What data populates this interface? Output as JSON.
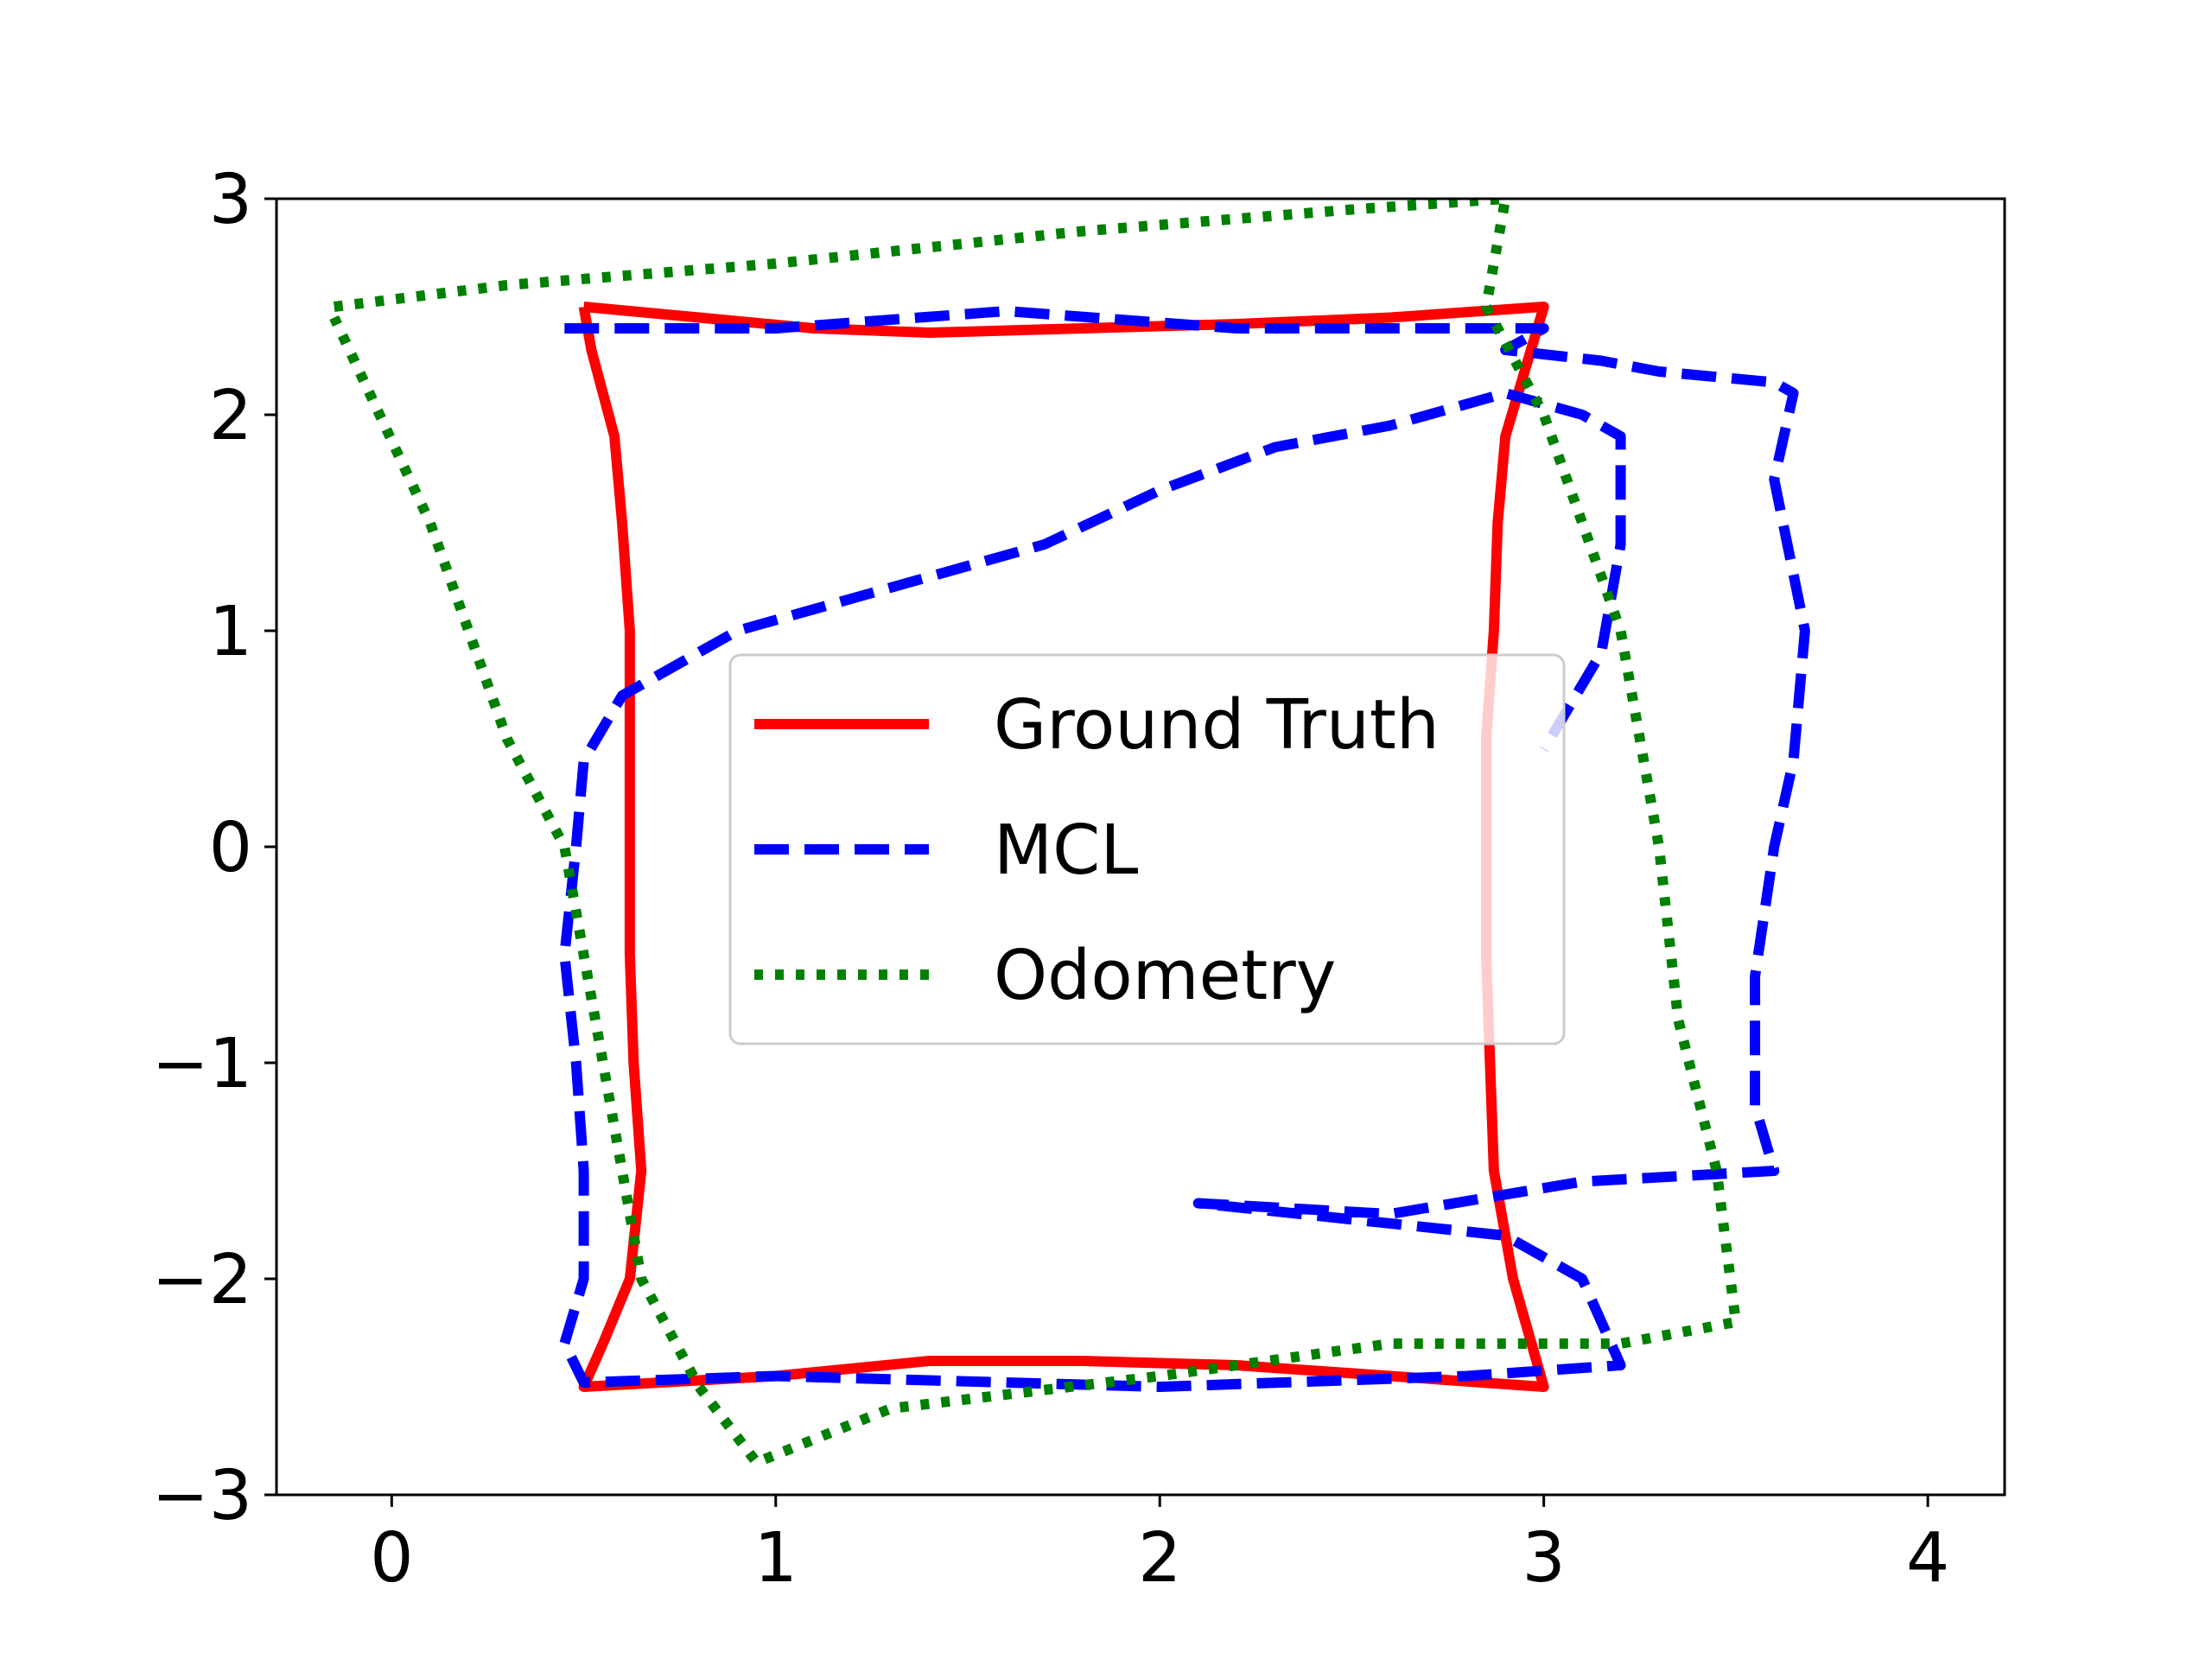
{
  "chart_data": {
    "type": "line",
    "title": "",
    "xlabel": "",
    "ylabel": "",
    "xlim": [
      -0.3,
      4.2
    ],
    "ylim": [
      -3,
      3
    ],
    "xticks": [
      0,
      1,
      2,
      3,
      4
    ],
    "xtick_labels": [
      "0",
      "1",
      "2",
      "3",
      "4"
    ],
    "yticks": [
      -3,
      -2,
      -1,
      0,
      1,
      2,
      3
    ],
    "ytick_labels": [
      "−3",
      "−2",
      "−1",
      "0",
      "1",
      "2",
      "3"
    ],
    "grid": false,
    "legend": {
      "placement": "center",
      "entries": [
        "Ground Truth",
        "MCL",
        "Odometry"
      ]
    },
    "series": [
      {
        "name": "Ground Truth",
        "color": "#ff0000",
        "style": "solid",
        "points": [
          [
            0.5,
            2.5
          ],
          [
            0.8,
            2.45
          ],
          [
            1.1,
            2.4
          ],
          [
            1.4,
            2.38
          ],
          [
            1.8,
            2.4
          ],
          [
            2.2,
            2.42
          ],
          [
            2.6,
            2.45
          ],
          [
            3.0,
            2.5
          ],
          [
            2.95,
            2.2
          ],
          [
            2.9,
            1.9
          ],
          [
            2.88,
            1.5
          ],
          [
            2.87,
            1.0
          ],
          [
            2.85,
            0.5
          ],
          [
            2.85,
            0.0
          ],
          [
            2.85,
            -0.5
          ],
          [
            2.86,
            -1.0
          ],
          [
            2.87,
            -1.5
          ],
          [
            2.92,
            -2.0
          ],
          [
            3.0,
            -2.5
          ],
          [
            2.6,
            -2.45
          ],
          [
            2.2,
            -2.4
          ],
          [
            1.8,
            -2.38
          ],
          [
            1.4,
            -2.38
          ],
          [
            1.0,
            -2.45
          ],
          [
            0.5,
            -2.5
          ],
          [
            0.55,
            -2.3
          ],
          [
            0.62,
            -2.0
          ],
          [
            0.65,
            -1.5
          ],
          [
            0.63,
            -1.0
          ],
          [
            0.62,
            -0.5
          ],
          [
            0.62,
            0.0
          ],
          [
            0.62,
            0.5
          ],
          [
            0.62,
            1.0
          ],
          [
            0.6,
            1.5
          ],
          [
            0.58,
            1.9
          ],
          [
            0.52,
            2.3
          ],
          [
            0.5,
            2.5
          ]
        ]
      },
      {
        "name": "MCL",
        "color": "#0000ff",
        "style": "dashed",
        "points": [
          [
            0.45,
            2.4
          ],
          [
            1.0,
            2.4
          ],
          [
            1.6,
            2.48
          ],
          [
            2.2,
            2.4
          ],
          [
            2.8,
            2.4
          ],
          [
            3.0,
            2.4
          ],
          [
            2.9,
            2.3
          ],
          [
            3.15,
            2.25
          ],
          [
            3.3,
            2.2
          ],
          [
            3.6,
            2.15
          ],
          [
            3.65,
            2.1
          ],
          [
            3.6,
            1.7
          ],
          [
            3.68,
            1.0
          ],
          [
            3.65,
            0.4
          ],
          [
            3.6,
            0.0
          ],
          [
            3.55,
            -0.6
          ],
          [
            3.55,
            -1.2
          ],
          [
            3.6,
            -1.5
          ],
          [
            3.1,
            -1.55
          ],
          [
            2.6,
            -1.7
          ],
          [
            2.1,
            -1.65
          ],
          [
            2.9,
            -1.8
          ],
          [
            3.1,
            -2.0
          ],
          [
            3.2,
            -2.4
          ],
          [
            2.8,
            -2.45
          ],
          [
            2.0,
            -2.5
          ],
          [
            1.0,
            -2.45
          ],
          [
            0.5,
            -2.48
          ],
          [
            0.45,
            -2.3
          ],
          [
            0.5,
            -2.0
          ],
          [
            0.5,
            -1.5
          ],
          [
            0.48,
            -1.0
          ],
          [
            0.45,
            -0.5
          ],
          [
            0.48,
            0.0
          ],
          [
            0.5,
            0.4
          ],
          [
            0.6,
            0.7
          ],
          [
            0.9,
            1.0
          ],
          [
            1.3,
            1.2
          ],
          [
            1.7,
            1.4
          ],
          [
            2.0,
            1.65
          ],
          [
            2.3,
            1.85
          ],
          [
            2.6,
            1.95
          ],
          [
            2.9,
            2.1
          ],
          [
            3.1,
            2.0
          ],
          [
            3.2,
            1.9
          ],
          [
            3.2,
            1.4
          ],
          [
            3.15,
            0.9
          ],
          [
            3.0,
            0.45
          ]
        ]
      },
      {
        "name": "Odometry",
        "color": "#008000",
        "style": "dotted",
        "points": [
          [
            -0.15,
            2.5
          ],
          [
            0.3,
            2.6
          ],
          [
            1.0,
            2.7
          ],
          [
            1.8,
            2.85
          ],
          [
            2.5,
            2.95
          ],
          [
            2.9,
            3.0
          ],
          [
            2.85,
            2.5
          ],
          [
            3.0,
            2.0
          ],
          [
            3.1,
            1.5
          ],
          [
            3.2,
            1.0
          ],
          [
            3.3,
            0.0
          ],
          [
            3.35,
            -0.8
          ],
          [
            3.45,
            -1.5
          ],
          [
            3.5,
            -2.2
          ],
          [
            3.2,
            -2.3
          ],
          [
            2.6,
            -2.3
          ],
          [
            2.0,
            -2.45
          ],
          [
            1.3,
            -2.6
          ],
          [
            0.95,
            -2.85
          ],
          [
            0.8,
            -2.5
          ],
          [
            0.65,
            -2.0
          ],
          [
            0.55,
            -1.0
          ],
          [
            0.45,
            0.0
          ],
          [
            0.3,
            0.5
          ],
          [
            0.1,
            1.5
          ],
          [
            -0.15,
            2.45
          ]
        ]
      }
    ]
  }
}
